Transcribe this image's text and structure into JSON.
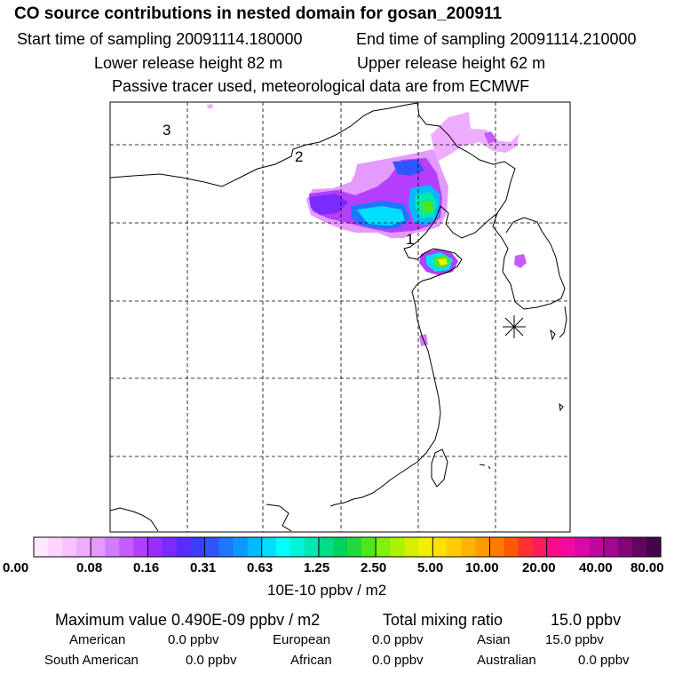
{
  "header": {
    "title": "CO  source contributions in nested domain for gosan_200911",
    "start_time": "Start time of sampling 20091114.180000",
    "end_time": "End time of sampling 20091114.210000",
    "lower_release": "Lower release height   82 m",
    "upper_release": "Upper release height   62 m",
    "tracer_info": "Passive tracer used, meteorological data are from ECMWF"
  },
  "map": {
    "labels": [
      "1",
      "2",
      "3"
    ],
    "receptor_marker": "station-star-marker"
  },
  "colorbar": {
    "ticks": [
      "0.00",
      "0.08",
      "0.16",
      "0.31",
      "0.63",
      "1.25",
      "2.50",
      "5.00",
      "10.00",
      "20.00",
      "40.00",
      "80.00"
    ],
    "unit": "10E-10 ppbv / m2",
    "colors": [
      "#ffe8ff",
      "#ffd6ff",
      "#f7c2ff",
      "#efadff",
      "#e59aff",
      "#d27cff",
      "#c65bff",
      "#b43fff",
      "#9a2eff",
      "#7a2bff",
      "#5a2cff",
      "#3d3dff",
      "#2f55ff",
      "#1d77ff",
      "#0d99ff",
      "#00bbff",
      "#00ddff",
      "#00ffff",
      "#00f5d8",
      "#00e8b0",
      "#00dc88",
      "#00d060",
      "#22d83a",
      "#4ce81c",
      "#80f010",
      "#aaf200",
      "#d2f000",
      "#f2f000",
      "#ffe000",
      "#ffca00",
      "#ffb400",
      "#ff9a00",
      "#ff7c00",
      "#ff5a00",
      "#ff3232",
      "#ff1a5a",
      "#ff0a88",
      "#f00aa0",
      "#d809a8",
      "#bd08a0",
      "#a00890",
      "#820678",
      "#640560",
      "#48044a"
    ]
  },
  "stats": {
    "max_label": "Maximum value  0.490E-09 ppbv / m2",
    "total_label": "Total mixing ratio",
    "total_value": "15.0 ppbv",
    "regions": [
      {
        "name": "American",
        "value": "0.0 ppbv"
      },
      {
        "name": "European",
        "value": "0.0 ppbv"
      },
      {
        "name": "Asian",
        "value": "15.0 ppbv"
      },
      {
        "name": "South American",
        "value": "0.0 ppbv"
      },
      {
        "name": "African",
        "value": "0.0 ppbv"
      },
      {
        "name": "Australian",
        "value": "0.0 ppbv"
      }
    ]
  }
}
